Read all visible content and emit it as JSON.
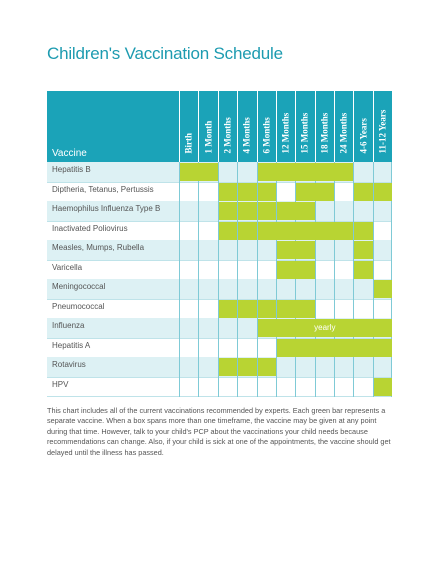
{
  "title": "Children's Vaccination Schedule",
  "vaccine_header": "Vaccine",
  "columns": [
    "Birth",
    "1 Month",
    "2 Months",
    "4 Months",
    "6 Months",
    "12 Months",
    "15 Months",
    "18 Months",
    "24 Months",
    "4-6 Years",
    "11-12 Years"
  ],
  "rows": [
    {
      "label": "Hepatitis B",
      "bars": [
        [
          0,
          1
        ],
        [
          4,
          8
        ]
      ]
    },
    {
      "label": "Diptheria, Tetanus, Pertussis",
      "bars": [
        [
          2,
          2
        ],
        [
          3,
          3
        ],
        [
          4,
          4
        ],
        [
          6,
          7
        ],
        [
          9,
          9
        ],
        [
          10,
          10
        ]
      ]
    },
    {
      "label": "Haemophilus Influenza Type B",
      "bars": [
        [
          2,
          2
        ],
        [
          3,
          3
        ],
        [
          4,
          4
        ],
        [
          5,
          6
        ]
      ]
    },
    {
      "label": "Inactivated Poliovirus",
      "bars": [
        [
          2,
          2
        ],
        [
          3,
          3
        ],
        [
          4,
          8
        ],
        [
          9,
          9
        ]
      ]
    },
    {
      "label": "Measles, Mumps, Rubella",
      "bars": [
        [
          5,
          6
        ],
        [
          9,
          9
        ]
      ]
    },
    {
      "label": "Varicella",
      "bars": [
        [
          5,
          6
        ],
        [
          9,
          9
        ]
      ]
    },
    {
      "label": "Meningococcal",
      "bars": [
        [
          10,
          10
        ]
      ]
    },
    {
      "label": "Pneumococcal",
      "bars": [
        [
          2,
          2
        ],
        [
          3,
          3
        ],
        [
          4,
          4
        ],
        [
          5,
          6
        ]
      ]
    },
    {
      "label": "Influenza",
      "bars": [
        [
          4,
          10
        ]
      ],
      "bar_text": "yearly"
    },
    {
      "label": "Hepatitis A",
      "bars": [
        [
          5,
          10
        ]
      ]
    },
    {
      "label": "Rotavirus",
      "bars": [
        [
          2,
          2
        ],
        [
          3,
          3
        ],
        [
          4,
          4
        ]
      ]
    },
    {
      "label": "HPV",
      "bars": [
        [
          10,
          10
        ]
      ]
    }
  ],
  "note": "This chart includes all of the current vaccinations recommended by experts. Each green bar represents a separate vaccine. When a box spans more than one timeframe, the vaccine may be given at any point during that time. However, talk to your child's PCP about the vaccinations your child needs because recommendations can change. Also, if your child is sick at one of the appointments, the vaccine should get delayed until the illness has passed.",
  "colors": {
    "accent": "#1ba3b8",
    "title": "#1d9bb0",
    "bar": "#b8d433",
    "row_alt": "#ddf1f4"
  }
}
